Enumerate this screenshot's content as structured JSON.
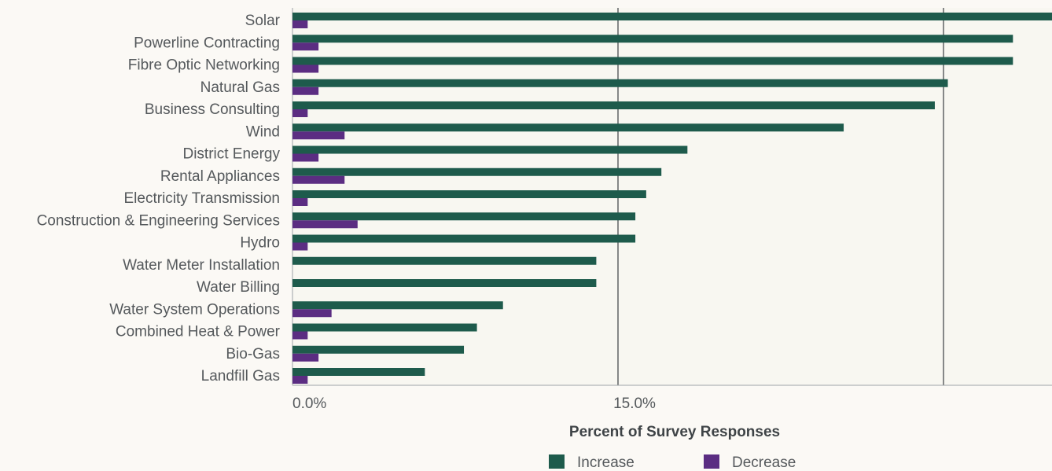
{
  "chart_data": {
    "type": "bar",
    "orientation": "horizontal",
    "categories": [
      "Solar",
      "Powerline Contracting",
      "Fibre Optic Networking",
      "Natural Gas",
      "Business Consulting",
      "Wind",
      "District Energy",
      "Rental Appliances",
      "Electricity Transmission",
      "Construction & Engineering Services",
      "Hydro",
      "Water Meter Installation",
      "Water Billing",
      "Water System Operations",
      "Combined Heat & Power",
      "Bio-Gas",
      "Landfill Gas"
    ],
    "series": [
      {
        "name": "Increase",
        "color": "#1e5b4c",
        "values": [
          35.0,
          33.2,
          33.2,
          30.2,
          29.6,
          25.4,
          18.2,
          17.0,
          16.3,
          15.8,
          15.8,
          14.0,
          14.0,
          9.7,
          8.5,
          7.9,
          6.1
        ]
      },
      {
        "name": "Decrease",
        "color": "#5b2d82",
        "values": [
          0.7,
          1.2,
          1.2,
          1.2,
          0.7,
          2.4,
          1.2,
          2.4,
          0.7,
          3.0,
          0.7,
          0.0,
          0.0,
          1.8,
          0.7,
          1.2,
          0.7
        ]
      }
    ],
    "xlim": [
      0,
      35
    ],
    "xticks": [
      0,
      15,
      30
    ],
    "xtick_labels": [
      "0.0%",
      "15.0%",
      ""
    ],
    "xlabel": "Percent of Survey Responses",
    "ylabel": "",
    "title": "",
    "grid": true,
    "legend_position": "bottom"
  }
}
